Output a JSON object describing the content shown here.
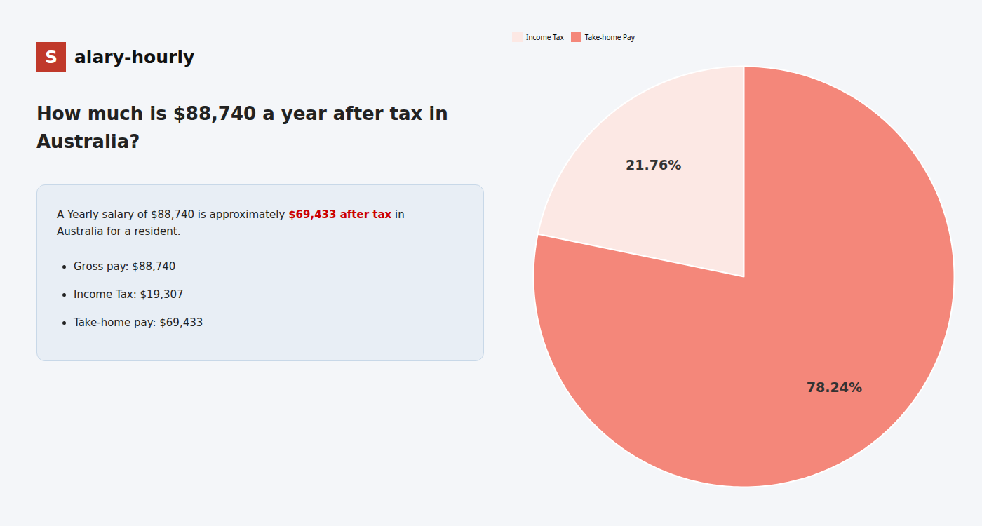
{
  "chart_data": {
    "type": "pie",
    "title": "How much is $88,740 a year after tax in\nAustralia?",
    "annotations": {
      "logo": [
        "S",
        "alary-hourly"
      ],
      "description": [
        [
          "A Yearly salary of $88,740 is approximately ",
          "$69,433 after tax",
          " in"
        ],
        "Australia for a resident."
      ],
      "bullets": [
        "Gross pay: $88,740",
        "Income Tax: $19,307",
        "Take-home pay: $69,433"
      ]
    },
    "categories": [
      "Income Tax",
      "Take-home Pay"
    ],
    "values": [
      21.76,
      78.24
    ],
    "value_labels": [
      "21.76%",
      "78.24%"
    ],
    "colors": [
      "#fce8e4",
      "#f4877a"
    ],
    "data_labels": true,
    "legend": "top"
  }
}
